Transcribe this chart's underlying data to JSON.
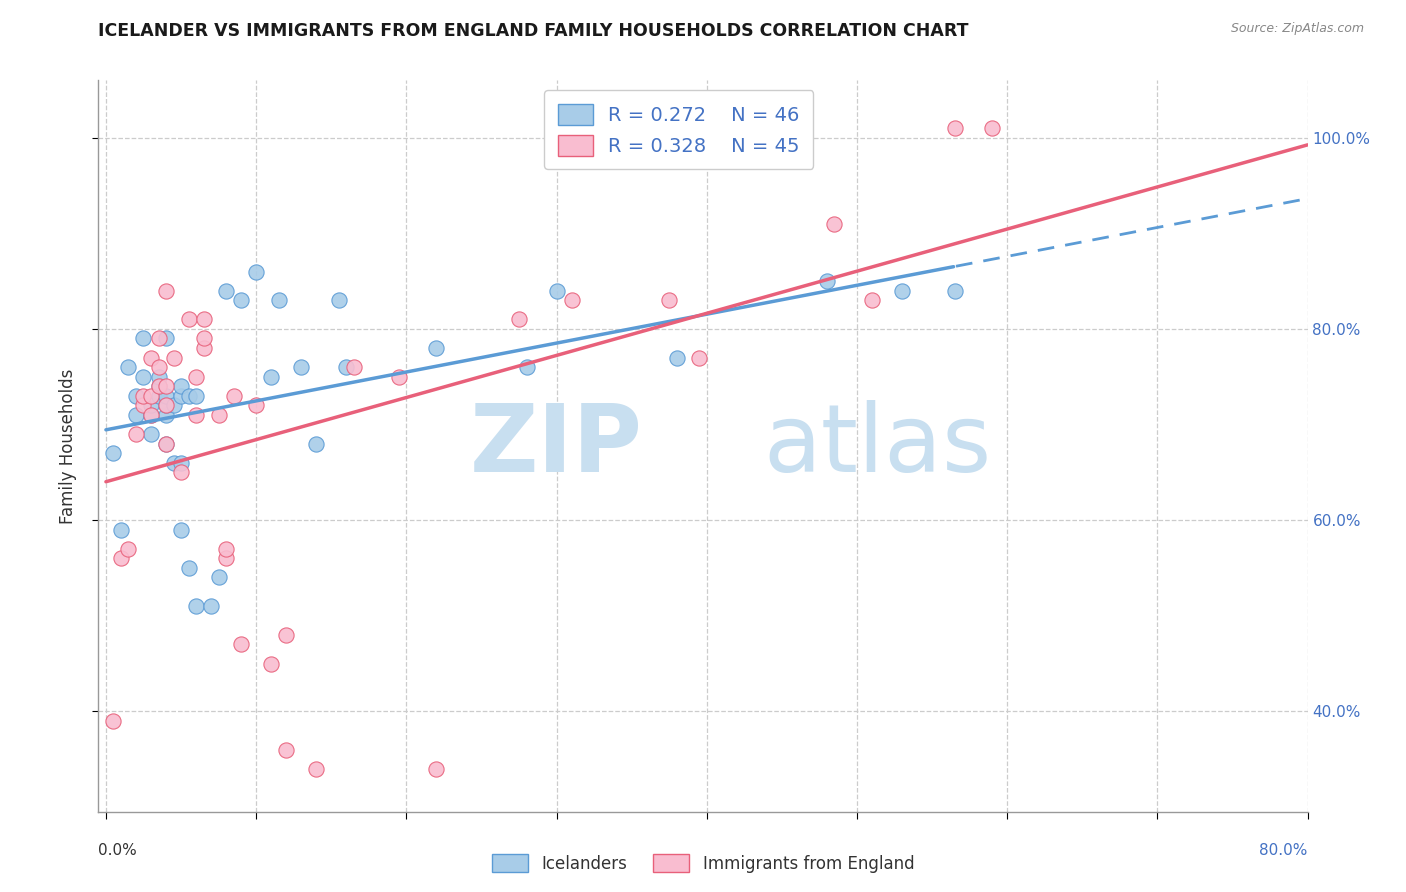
{
  "title": "ICELANDER VS IMMIGRANTS FROM ENGLAND FAMILY HOUSEHOLDS CORRELATION CHART",
  "source": "Source: ZipAtlas.com",
  "ylabel": "Family Households",
  "legend_label1": "Icelanders",
  "legend_label2": "Immigrants from England",
  "r1": "0.272",
  "n1": "46",
  "r2": "0.328",
  "n2": "45",
  "color_blue": "#a8cce8",
  "color_pink": "#f9bdd0",
  "color_blue_line": "#5b9bd5",
  "color_pink_line": "#e8607a",
  "color_blue_text": "#4472c4",
  "watermark_zip_color": "#c8dff0",
  "watermark_atlas_color": "#c8dff0",
  "blue_scatter_x": [
    0.005,
    0.01,
    0.015,
    0.02,
    0.02,
    0.025,
    0.025,
    0.03,
    0.03,
    0.03,
    0.035,
    0.035,
    0.035,
    0.04,
    0.04,
    0.04,
    0.04,
    0.04,
    0.045,
    0.045,
    0.05,
    0.05,
    0.05,
    0.05,
    0.055,
    0.055,
    0.06,
    0.06,
    0.07,
    0.075,
    0.08,
    0.09,
    0.1,
    0.11,
    0.115,
    0.13,
    0.14,
    0.155,
    0.16,
    0.22,
    0.28,
    0.3,
    0.38,
    0.48,
    0.53,
    0.565
  ],
  "blue_scatter_y": [
    0.67,
    0.59,
    0.76,
    0.71,
    0.73,
    0.75,
    0.79,
    0.69,
    0.71,
    0.72,
    0.73,
    0.74,
    0.75,
    0.68,
    0.71,
    0.72,
    0.73,
    0.79,
    0.66,
    0.72,
    0.59,
    0.66,
    0.73,
    0.74,
    0.55,
    0.73,
    0.51,
    0.73,
    0.51,
    0.54,
    0.84,
    0.83,
    0.86,
    0.75,
    0.83,
    0.76,
    0.68,
    0.83,
    0.76,
    0.78,
    0.76,
    0.84,
    0.77,
    0.85,
    0.84,
    0.84
  ],
  "pink_scatter_x": [
    0.005,
    0.01,
    0.015,
    0.02,
    0.025,
    0.025,
    0.03,
    0.03,
    0.03,
    0.035,
    0.035,
    0.035,
    0.04,
    0.04,
    0.04,
    0.04,
    0.045,
    0.05,
    0.055,
    0.06,
    0.06,
    0.065,
    0.065,
    0.065,
    0.075,
    0.08,
    0.08,
    0.085,
    0.09,
    0.1,
    0.11,
    0.12,
    0.12,
    0.14,
    0.165,
    0.195,
    0.22,
    0.275,
    0.31,
    0.375,
    0.395,
    0.485,
    0.51,
    0.565,
    0.59
  ],
  "pink_scatter_y": [
    0.39,
    0.56,
    0.57,
    0.69,
    0.72,
    0.73,
    0.77,
    0.71,
    0.73,
    0.74,
    0.76,
    0.79,
    0.84,
    0.68,
    0.72,
    0.74,
    0.77,
    0.65,
    0.81,
    0.71,
    0.75,
    0.78,
    0.79,
    0.81,
    0.71,
    0.56,
    0.57,
    0.73,
    0.47,
    0.72,
    0.45,
    0.36,
    0.48,
    0.34,
    0.76,
    0.75,
    0.34,
    0.81,
    0.83,
    0.83,
    0.77,
    0.91,
    0.83,
    1.01,
    1.01
  ]
}
